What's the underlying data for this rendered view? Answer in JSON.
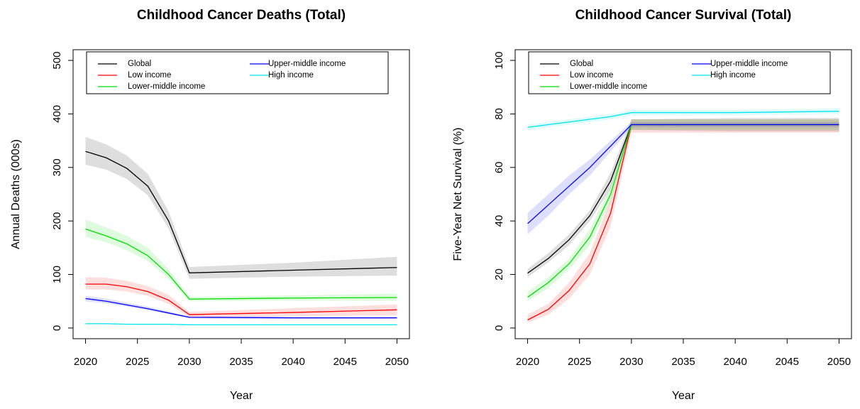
{
  "chart_data": [
    {
      "type": "line",
      "title": "Childhood Cancer Deaths (Total)",
      "x_label": "Year",
      "y_label": "Annual Deaths (000s)",
      "x": [
        2020,
        2022,
        2024,
        2026,
        2028,
        2030,
        2040,
        2050
      ],
      "xlim": [
        2018.8,
        2051.2
      ],
      "xticks": [
        2020,
        2025,
        2030,
        2035,
        2040,
        2045,
        2050
      ],
      "ylim": [
        -20,
        520
      ],
      "yticks": [
        0,
        100,
        200,
        300,
        400,
        500
      ],
      "legend": "top",
      "series": [
        {
          "name": "Global",
          "color": "#000000",
          "values": [
            330,
            318,
            298,
            265,
            200,
            103,
            108,
            113
          ],
          "lower": [
            305,
            296,
            278,
            248,
            186,
            92,
            96,
            98
          ],
          "upper": [
            357,
            343,
            322,
            288,
            218,
            114,
            122,
            133
          ]
        },
        {
          "name": "Low income",
          "color": "#ff0000",
          "values": [
            82,
            82,
            77,
            68,
            52,
            25,
            29,
            34
          ],
          "lower": [
            72,
            72,
            68,
            60,
            45,
            20,
            22,
            24
          ],
          "upper": [
            95,
            94,
            88,
            78,
            62,
            30,
            37,
            44
          ]
        },
        {
          "name": "Lower-middle income",
          "color": "#00dd00",
          "values": [
            185,
            172,
            157,
            135,
            100,
            54,
            56,
            57
          ],
          "lower": [
            170,
            160,
            145,
            125,
            92,
            50,
            51,
            51
          ],
          "upper": [
            203,
            188,
            172,
            150,
            110,
            58,
            61,
            64
          ]
        },
        {
          "name": "Upper-middle income",
          "color": "#0000ff",
          "values": [
            55,
            50,
            43,
            36,
            28,
            20,
            19,
            19
          ],
          "lower": [
            50,
            46,
            40,
            33,
            26,
            18,
            17,
            17
          ],
          "upper": [
            60,
            55,
            47,
            40,
            31,
            22,
            21,
            21
          ]
        },
        {
          "name": "High income",
          "color": "#00e5ee",
          "values": [
            8,
            8,
            7,
            7,
            7,
            6,
            6,
            6
          ],
          "lower": [
            7,
            7,
            6,
            6,
            6,
            5,
            5,
            5
          ],
          "upper": [
            9,
            9,
            8,
            8,
            8,
            7,
            7,
            7
          ]
        }
      ]
    },
    {
      "type": "line",
      "title": "Childhood Cancer Survival (Total)",
      "x_label": "Year",
      "y_label": "Five-Year Net Survival (%)",
      "x": [
        2020,
        2022,
        2024,
        2026,
        2028,
        2030,
        2040,
        2050
      ],
      "xlim": [
        2018.8,
        2051.2
      ],
      "xticks": [
        2020,
        2025,
        2030,
        2035,
        2040,
        2045,
        2050
      ],
      "ylim": [
        -4,
        104
      ],
      "yticks": [
        0,
        20,
        40,
        60,
        80,
        100
      ],
      "legend": "top",
      "series": [
        {
          "name": "Global",
          "color": "#000000",
          "values": [
            20.5,
            26,
            33,
            42,
            55,
            76,
            76,
            76
          ],
          "lower": [
            19,
            24.5,
            31,
            40,
            52,
            74,
            73.5,
            73.5
          ],
          "upper": [
            22,
            28,
            35,
            44,
            58,
            78,
            78.5,
            78.5
          ]
        },
        {
          "name": "Low income",
          "color": "#ff0000",
          "values": [
            3,
            7,
            14,
            24,
            43,
            76,
            76,
            76
          ],
          "lower": [
            2,
            5,
            11,
            20,
            38,
            73,
            73,
            73
          ],
          "upper": [
            5,
            9,
            17,
            28,
            48,
            78,
            78,
            78
          ]
        },
        {
          "name": "Lower-middle income",
          "color": "#00dd00",
          "values": [
            11.5,
            17,
            24,
            34,
            50,
            76,
            76,
            76
          ],
          "lower": [
            10,
            15,
            22,
            31,
            47,
            74,
            74,
            74
          ],
          "upper": [
            13.5,
            19,
            26,
            37,
            53,
            78,
            78,
            78
          ]
        },
        {
          "name": "Upper-middle income",
          "color": "#0000ff",
          "values": [
            39,
            46,
            53,
            60,
            68,
            76,
            76,
            76
          ],
          "lower": [
            35,
            42,
            50,
            57,
            66,
            75,
            75,
            75
          ],
          "upper": [
            43,
            50,
            57,
            63,
            70,
            77,
            77,
            77
          ]
        },
        {
          "name": "High income",
          "color": "#00e5ee",
          "values": [
            75,
            76,
            77,
            78,
            79,
            80.5,
            80.5,
            81
          ],
          "lower": [
            74,
            75,
            76,
            77,
            78,
            79.5,
            79.5,
            80
          ],
          "upper": [
            76,
            77,
            78,
            79,
            80,
            81.5,
            81.5,
            82
          ]
        }
      ]
    }
  ]
}
